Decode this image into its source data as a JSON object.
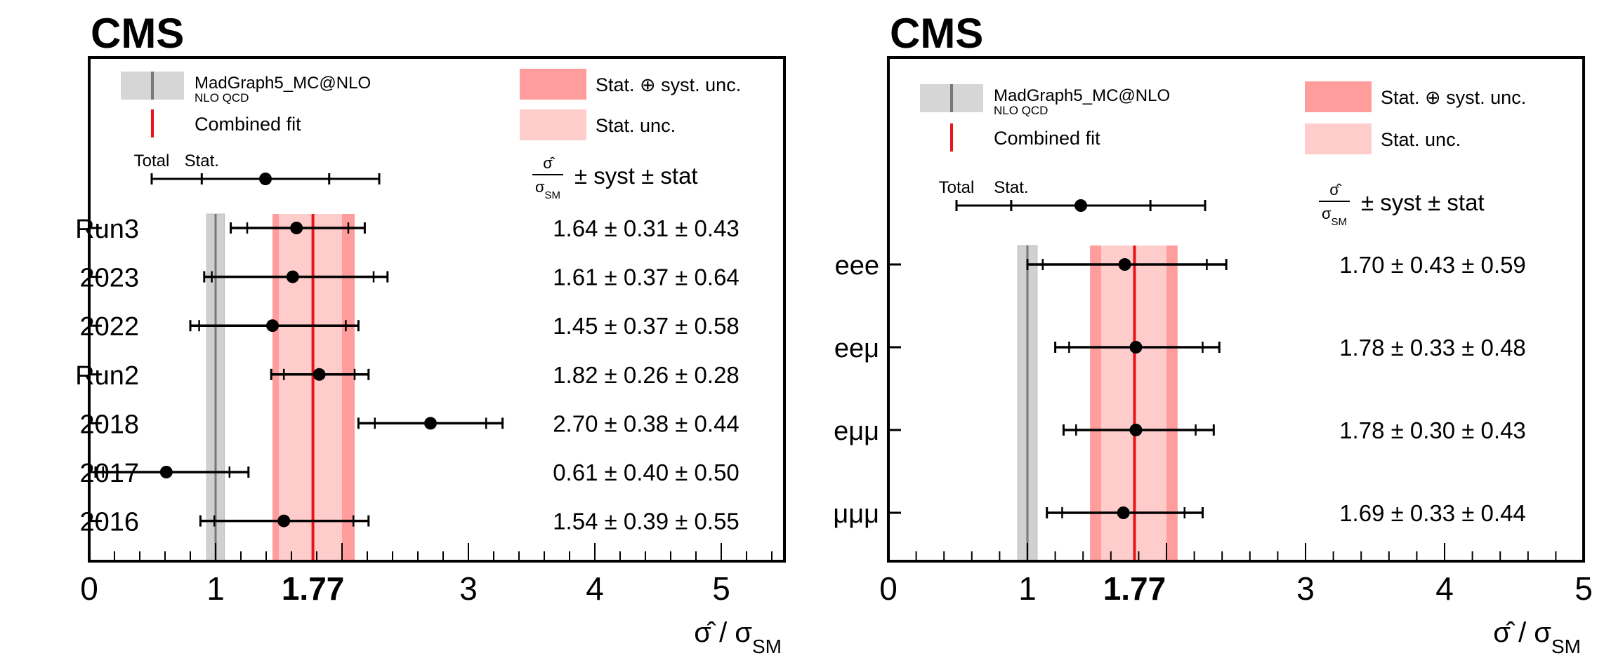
{
  "chart_data": [
    {
      "type": "forest",
      "title": "CMS",
      "xlabel": "σ̂ / σ_SM",
      "xlim": [
        0,
        5.5
      ],
      "x_ticks": [
        "0",
        "1",
        "1.77",
        "3",
        "4",
        "5"
      ],
      "x_tick_values": [
        0,
        1,
        1.77,
        3,
        4,
        5
      ],
      "header": "σ̂/σ_SM ± syst ± stat",
      "combined_fit": 1.77,
      "combined_stat_unc": [
        1.5,
        2.0
      ],
      "combined_total_unc": [
        1.45,
        2.1
      ],
      "prediction": {
        "value": 1.0,
        "band": [
          0.93,
          1.07
        ]
      },
      "legend": {
        "mc_label": "MadGraph5_MC@NLO",
        "mc_sublabel": "NLO QCD",
        "fit_label": "Combined fit",
        "total_label": "Stat. ⊕ syst. unc.",
        "stat_label": "Stat. unc.",
        "example_total": "Total",
        "example_stat": "Stat."
      },
      "rows": [
        {
          "label": "Run3",
          "value": 1.64,
          "stat": [
            1.25,
            2.05
          ],
          "total": [
            1.12,
            2.18
          ],
          "text": "1.64 ± 0.31 ± 0.43"
        },
        {
          "label": "2023",
          "value": 1.61,
          "stat": [
            0.97,
            2.25
          ],
          "total": [
            0.91,
            2.36
          ],
          "text": "1.61 ± 0.37 ± 0.64"
        },
        {
          "label": "2022",
          "value": 1.45,
          "stat": [
            0.87,
            2.03
          ],
          "total": [
            0.8,
            2.13
          ],
          "text": "1.45 ± 0.37 ± 0.58"
        },
        {
          "label": "Run2",
          "value": 1.82,
          "stat": [
            1.54,
            2.1
          ],
          "total": [
            1.44,
            2.21
          ],
          "text": "1.82 ± 0.26 ± 0.28"
        },
        {
          "label": "2018",
          "value": 2.7,
          "stat": [
            2.26,
            3.14
          ],
          "total": [
            2.13,
            3.27
          ],
          "text": "2.70 ± 0.38 ± 0.44"
        },
        {
          "label": "2017",
          "value": 0.61,
          "stat": [
            0.11,
            1.11
          ],
          "total": [
            0.05,
            1.26
          ],
          "text": "0.61 ± 0.40 ± 0.50"
        },
        {
          "label": "2016",
          "value": 1.54,
          "stat": [
            0.99,
            2.09
          ],
          "total": [
            0.88,
            2.21
          ],
          "text": "1.54 ± 0.39 ± 0.55"
        }
      ]
    },
    {
      "type": "forest",
      "title": "CMS",
      "xlabel": "σ̂ / σ_SM",
      "xlim": [
        0,
        5
      ],
      "x_ticks": [
        "0",
        "1",
        "1.77",
        "3",
        "4",
        "5"
      ],
      "x_tick_values": [
        0,
        1,
        1.77,
        3,
        4,
        5
      ],
      "header": "σ̂/σ_SM ± syst ± stat",
      "combined_fit": 1.77,
      "combined_stat_unc": [
        1.53,
        2.0
      ],
      "combined_total_unc": [
        1.45,
        2.08
      ],
      "prediction": {
        "value": 1.0,
        "band": [
          0.93,
          1.07
        ]
      },
      "legend": {
        "mc_label": "MadGraph5_MC@NLO",
        "mc_sublabel": "NLO QCD",
        "fit_label": "Combined fit",
        "total_label": "Stat. ⊕ syst. unc.",
        "stat_label": "Stat. unc.",
        "example_total": "Total",
        "example_stat": "Stat."
      },
      "rows": [
        {
          "label": "eee",
          "value": 1.7,
          "stat": [
            1.11,
            2.29
          ],
          "total": [
            1.0,
            2.43
          ],
          "text": "1.70 ± 0.43 ± 0.59"
        },
        {
          "label": "eeμ",
          "value": 1.78,
          "stat": [
            1.3,
            2.26
          ],
          "total": [
            1.2,
            2.38
          ],
          "text": "1.78 ± 0.33 ± 0.48"
        },
        {
          "label": "eμμ",
          "value": 1.78,
          "stat": [
            1.35,
            2.21
          ],
          "total": [
            1.26,
            2.34
          ],
          "text": "1.78 ± 0.30 ± 0.43"
        },
        {
          "label": "μμμ",
          "value": 1.69,
          "stat": [
            1.25,
            2.13
          ],
          "total": [
            1.14,
            2.26
          ],
          "text": "1.69 ± 0.33 ± 0.44"
        }
      ]
    }
  ]
}
